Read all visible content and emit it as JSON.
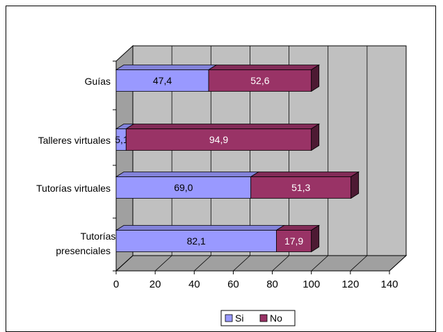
{
  "chart_data": {
    "type": "bar",
    "orientation": "horizontal",
    "stacked": true,
    "three_d": true,
    "categories": [
      "Guías",
      "Talleres virtuales",
      "Tutorías virtuales",
      "Tutorías presenciales"
    ],
    "series": [
      {
        "name": "Si",
        "values": [
          47.4,
          5.1,
          69.0,
          82.1
        ],
        "labels": [
          "47,4",
          "5,1",
          "69,0",
          "82,1"
        ],
        "color": "#9999ff"
      },
      {
        "name": "No",
        "values": [
          52.6,
          94.9,
          51.3,
          17.9
        ],
        "labels": [
          "52,6",
          "94,9",
          "51,3",
          "17,9"
        ],
        "color": "#993366"
      }
    ],
    "xlim": [
      0,
      140
    ],
    "xticks": [
      "0",
      "20",
      "40",
      "60",
      "80",
      "100",
      "120",
      "140"
    ],
    "grid": true,
    "legend_position": "bottom",
    "colors": {
      "wall": "#c0c0c0",
      "floor": "#a0a0a0",
      "si": "#9999ff",
      "no": "#993366"
    }
  }
}
